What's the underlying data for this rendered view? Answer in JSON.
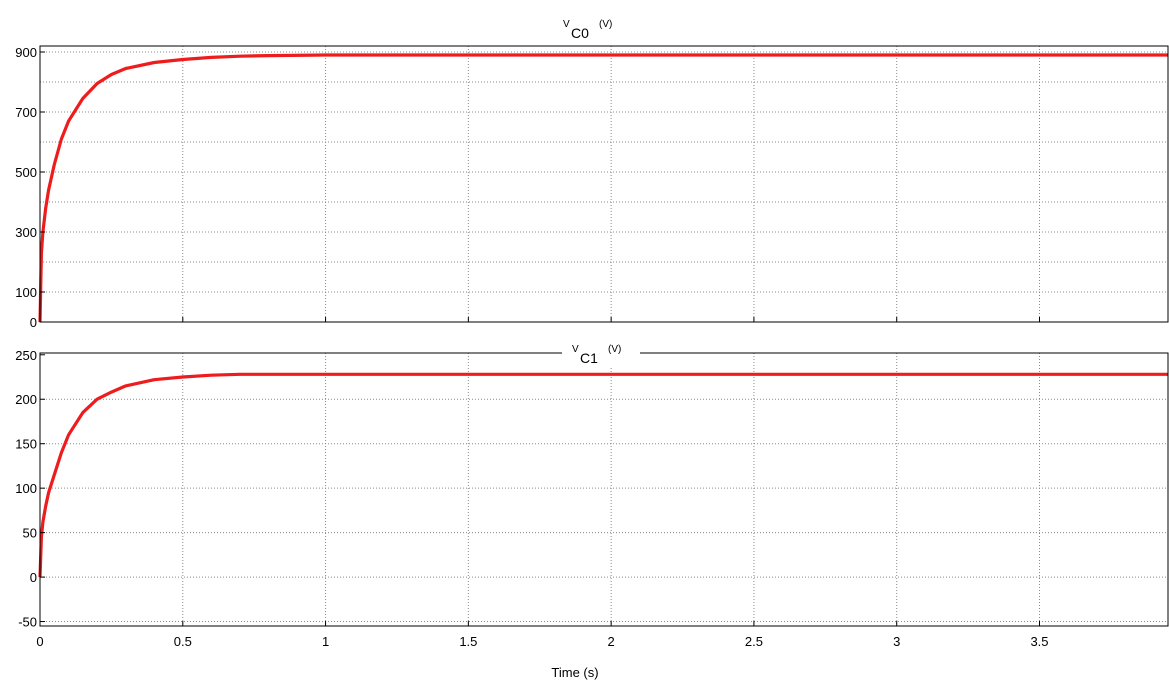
{
  "colors": {
    "trace": "#ee1c1c",
    "grid": "#8a8a8a",
    "axis": "#000000",
    "background": "#ffffff"
  },
  "xlabel": "Time (s)",
  "chart_data": [
    {
      "type": "line",
      "title": {
        "main": "V",
        "sub": "C0",
        "unit": "(V)"
      },
      "xlim": [
        0,
        3.95
      ],
      "ylim": [
        0,
        920
      ],
      "yticks": [
        0,
        100,
        300,
        500,
        700,
        900
      ],
      "ygrid": [
        0,
        100,
        200,
        300,
        400,
        500,
        600,
        700,
        800,
        900
      ],
      "xticks": [
        0,
        0.5,
        1,
        1.5,
        2,
        2.5,
        3,
        3.5
      ],
      "xtick_labels_shown": false,
      "grid": true,
      "series": [
        {
          "x": [
            0,
            0.005,
            0.01,
            0.02,
            0.03,
            0.05,
            0.075,
            0.1,
            0.15,
            0.2,
            0.25,
            0.3,
            0.4,
            0.5,
            0.6,
            0.7,
            0.8,
            1.0,
            1.5,
            2.0,
            2.5,
            3.0,
            3.5,
            3.95
          ],
          "y": [
            0,
            230,
            300,
            380,
            440,
            525,
            610,
            670,
            745,
            795,
            825,
            845,
            865,
            875,
            882,
            886,
            888,
            890,
            890,
            890,
            890,
            890,
            890,
            890
          ]
        }
      ]
    },
    {
      "type": "line",
      "title": {
        "main": "V",
        "sub": "C1",
        "unit": "(V)"
      },
      "xlim": [
        0,
        3.95
      ],
      "ylim": [
        -55,
        252
      ],
      "yticks": [
        -50,
        0,
        50,
        100,
        150,
        200,
        250
      ],
      "ygrid": [
        -50,
        0,
        50,
        100,
        150,
        200
      ],
      "xticks": [
        0,
        0.5,
        1,
        1.5,
        2,
        2.5,
        3,
        3.5
      ],
      "xtick_labels": [
        "0",
        "0.5",
        "1",
        "1.5",
        "2",
        "2.5",
        "3",
        "3.5"
      ],
      "grid": true,
      "series": [
        {
          "x": [
            0,
            0.005,
            0.01,
            0.02,
            0.03,
            0.05,
            0.075,
            0.1,
            0.15,
            0.2,
            0.25,
            0.3,
            0.4,
            0.5,
            0.6,
            0.7,
            0.8,
            1.0,
            1.5,
            2.0,
            2.5,
            3.0,
            3.5,
            3.95
          ],
          "y": [
            0,
            45,
            62,
            80,
            95,
            115,
            140,
            160,
            185,
            200,
            208,
            215,
            222,
            225,
            227,
            228,
            228,
            228,
            228,
            228,
            228,
            228,
            228,
            228
          ]
        }
      ]
    }
  ]
}
